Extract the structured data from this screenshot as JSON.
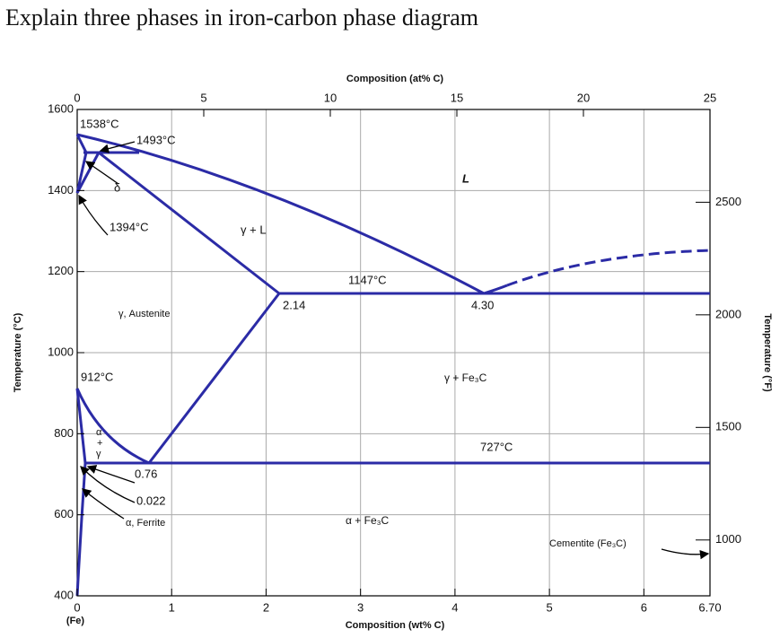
{
  "title": "Explain three phases in iron-carbon phase diagram",
  "top_axis": {
    "label": "Composition (at% C)",
    "ticks": [
      "0",
      "5",
      "10",
      "15",
      "20",
      "25"
    ]
  },
  "bottom_axis": {
    "label": "Composition (wt% C)",
    "ticks": [
      "0",
      "1",
      "2",
      "3",
      "4",
      "5",
      "6",
      "6.70"
    ],
    "origin_note": "(Fe)"
  },
  "left_axis": {
    "label": "Temperature (°C)",
    "ticks": [
      "1600",
      "1400",
      "1200",
      "1000",
      "800",
      "600",
      "400"
    ]
  },
  "right_axis": {
    "label": "Temperature (°F)",
    "ticks": [
      "2500",
      "2000",
      "1500",
      "1000"
    ]
  },
  "annotations": [
    "1538°C",
    "1493°C",
    "δ",
    "1394°C",
    "γ + L",
    "L",
    "1147°C",
    "2.14",
    "4.30",
    "γ, Austenite",
    "912°C",
    "γ + Fe₃C",
    "727°C",
    "α",
    "+",
    "γ",
    "0.76",
    "0.022",
    "α, Ferrite",
    "α + Fe₃C",
    "Cementite (Fe₃C)"
  ]
}
